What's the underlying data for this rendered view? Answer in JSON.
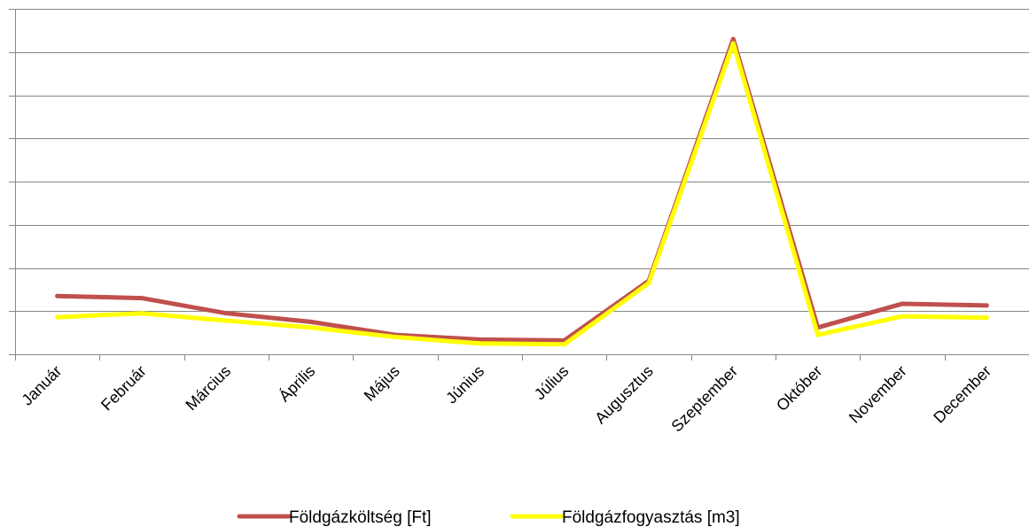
{
  "chart_data": {
    "type": "line",
    "title": "",
    "xlabel": "",
    "ylabel": "",
    "categories": [
      "Január",
      "Február",
      "Március",
      "Április",
      "Május",
      "Június",
      "Július",
      "Augusztus",
      "Szeptember",
      "Október",
      "November",
      "December"
    ],
    "ylim": [
      0,
      8
    ],
    "y_tick_count": 9,
    "y_tick_labels_visible": false,
    "grid": true,
    "legend_position": "bottom",
    "series": [
      {
        "name": "Földgázköltség [Ft]",
        "color": "#C0504D",
        "values": [
          1.35,
          1.3,
          0.95,
          0.75,
          0.45,
          0.34,
          0.32,
          1.7,
          7.3,
          0.62,
          1.17,
          1.13
        ]
      },
      {
        "name": "Földgázfogyasztás [m3]",
        "color": "#FFFF00",
        "values": [
          0.86,
          0.95,
          0.78,
          0.62,
          0.4,
          0.25,
          0.23,
          1.65,
          7.2,
          0.45,
          0.88,
          0.85
        ]
      }
    ]
  }
}
